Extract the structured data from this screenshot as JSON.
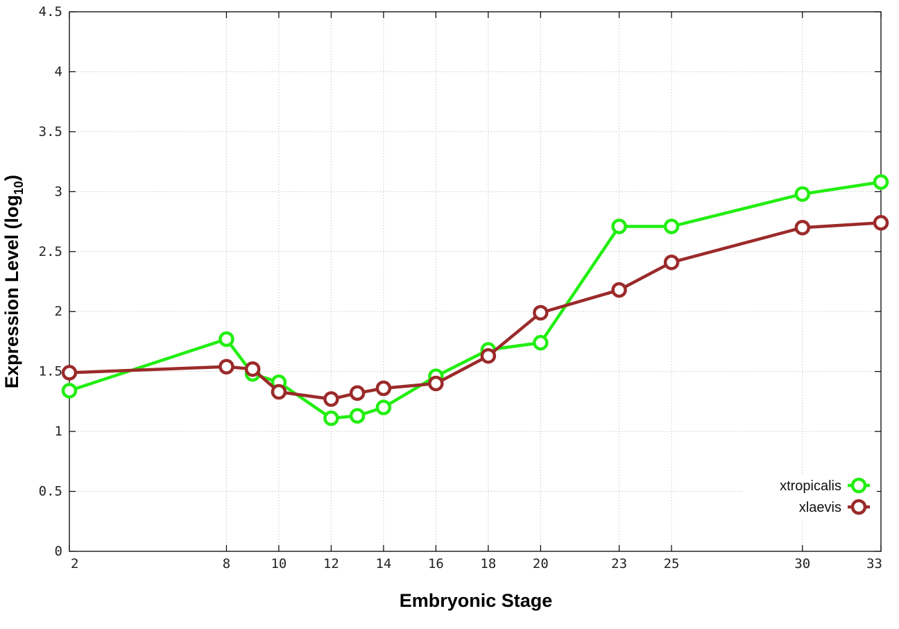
{
  "chart_data": {
    "type": "line",
    "xlabel": "Embryonic Stage",
    "ylabel_main": "Expression Level (log",
    "ylabel_sub": "10",
    "ylabel_close": ")",
    "xlim": [
      2,
      33
    ],
    "ylim": [
      0,
      4.5
    ],
    "x_ticks": [
      2,
      8,
      10,
      12,
      14,
      16,
      18,
      20,
      23,
      25,
      30,
      33
    ],
    "x_tick_labels": [
      "2",
      "8",
      "10",
      "12",
      "14",
      "16",
      "18",
      "20",
      "23",
      "25",
      "30",
      "33"
    ],
    "y_ticks": [
      0,
      0.5,
      1,
      1.5,
      2,
      2.5,
      3,
      3.5,
      4,
      4.5
    ],
    "y_tick_labels": [
      "0",
      "0.5",
      "1",
      "1.5",
      "2",
      "2.5",
      "3",
      "3.5",
      "4",
      "4.5"
    ],
    "grid": true,
    "legend_position": "bottom-right",
    "x": [
      2,
      8,
      9,
      10,
      12,
      13,
      14,
      16,
      18,
      20,
      23,
      25,
      30,
      33
    ],
    "series": [
      {
        "name": "xtropicalis",
        "color": "#22ee11",
        "values": [
          1.34,
          1.77,
          1.48,
          1.41,
          1.11,
          1.13,
          1.2,
          1.46,
          1.68,
          1.74,
          2.71,
          2.71,
          2.98,
          3.08
        ]
      },
      {
        "name": "xlaevis",
        "color": "#9b2a2a",
        "values": [
          1.49,
          1.54,
          1.52,
          1.33,
          1.27,
          1.32,
          1.36,
          1.4,
          1.63,
          1.99,
          2.18,
          2.41,
          2.7,
          2.74
        ]
      }
    ]
  }
}
